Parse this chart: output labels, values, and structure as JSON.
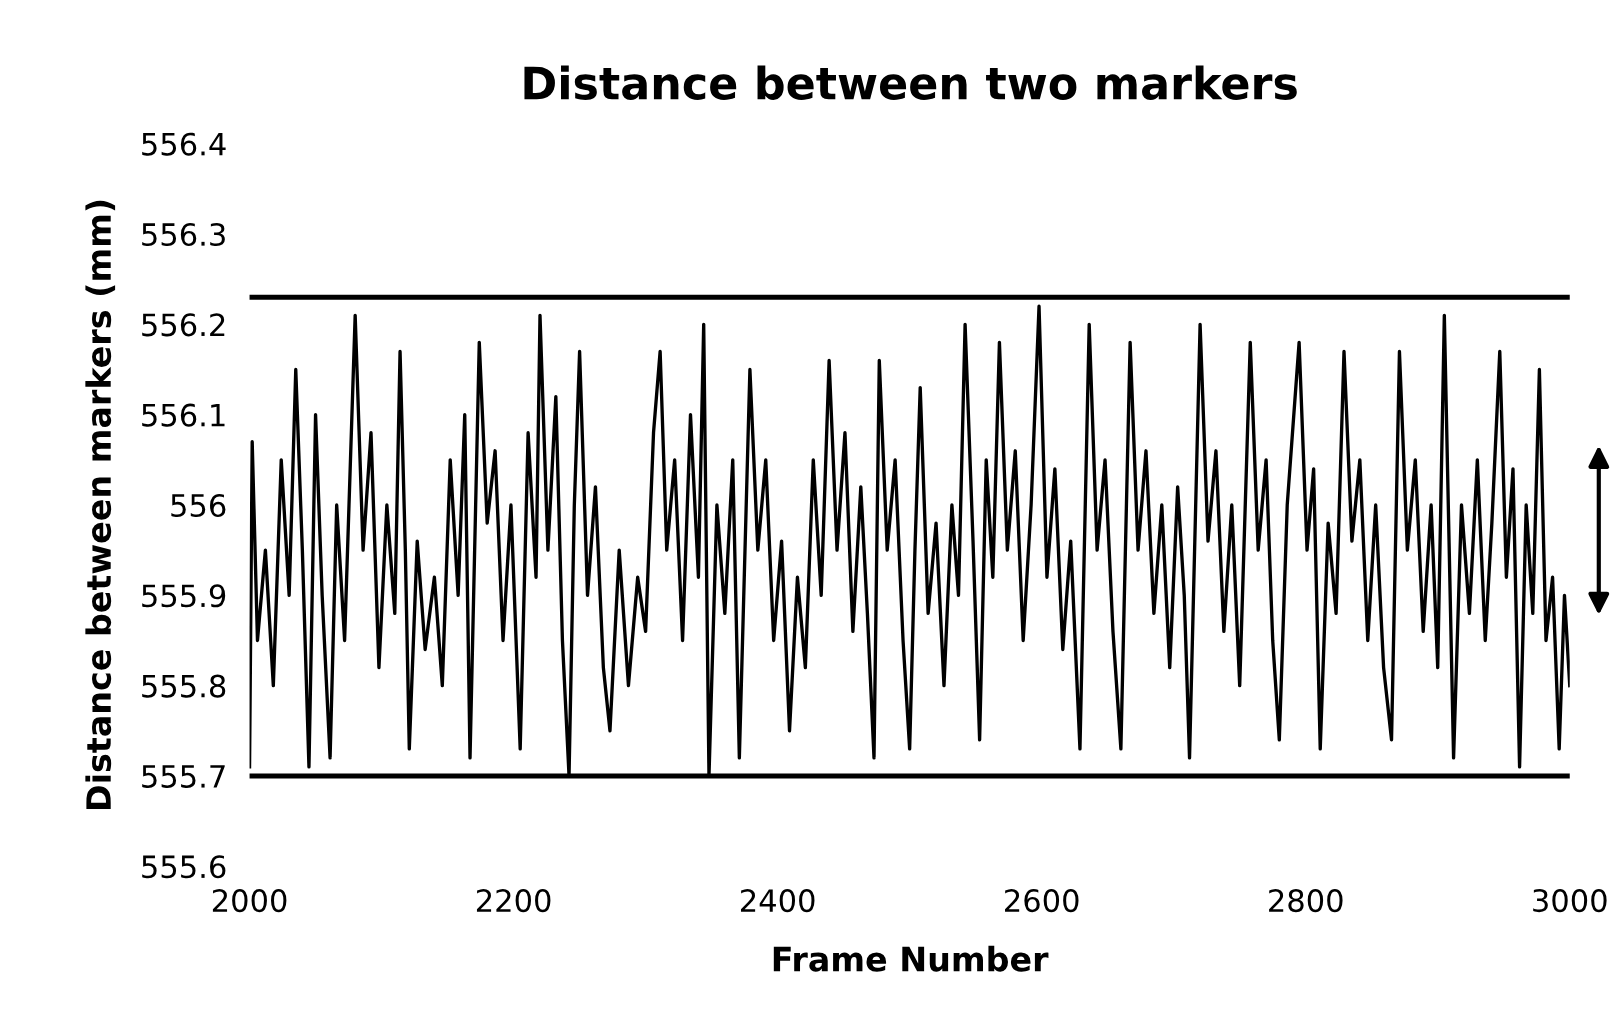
{
  "chart_data": {
    "type": "line",
    "title": "Distance between two markers",
    "xlabel": "Frame Number",
    "ylabel": "Distance between markers (mm)",
    "xlim": [
      2000,
      3000
    ],
    "ylim": [
      555.6,
      556.4
    ],
    "xticks": [
      2000,
      2200,
      2400,
      2600,
      2800,
      3000
    ],
    "yticks": [
      555.6,
      555.7,
      555.8,
      555.9,
      {
        "value": 556,
        "label": "556"
      },
      556.1,
      556.2,
      556.3,
      556.4
    ],
    "grid": false,
    "legend": false,
    "marker": "none",
    "line_style": "solid",
    "ref_lines": [
      {
        "axis": "y",
        "value": 556.23,
        "color": "#000000"
      },
      {
        "axis": "y",
        "value": 555.7,
        "color": "#000000"
      }
    ],
    "series": [
      {
        "color": "#000000",
        "x": [
          2000,
          2002,
          2006,
          2012,
          2018,
          2024,
          2030,
          2035,
          2040,
          2045,
          2050,
          2055,
          2061,
          2066,
          2072,
          2080,
          2086,
          2092,
          2098,
          2104,
          2110,
          2114,
          2118,
          2121,
          2127,
          2133,
          2140,
          2146,
          2152,
          2158,
          2163,
          2167,
          2174,
          2180,
          2186,
          2192,
          2198,
          2205,
          2211,
          2217,
          2220,
          2226,
          2232,
          2237,
          2242,
          2246,
          2250,
          2256,
          2262,
          2268,
          2273,
          2280,
          2287,
          2294,
          2300,
          2306,
          2311,
          2316,
          2322,
          2328,
          2334,
          2340,
          2344,
          2348,
          2354,
          2360,
          2366,
          2371,
          2379,
          2385,
          2391,
          2397,
          2403,
          2409,
          2415,
          2421,
          2427,
          2433,
          2439,
          2445,
          2451,
          2457,
          2463,
          2468,
          2473,
          2477,
          2483,
          2489,
          2495,
          2500,
          2504,
          2508,
          2514,
          2520,
          2526,
          2532,
          2537,
          2542,
          2548,
          2553,
          2558,
          2563,
          2568,
          2574,
          2580,
          2586,
          2592,
          2598,
          2604,
          2610,
          2616,
          2622,
          2629,
          2636,
          2642,
          2648,
          2654,
          2660,
          2667,
          2673,
          2679,
          2685,
          2691,
          2697,
          2703,
          2708,
          2712,
          2720,
          2726,
          2732,
          2738,
          2744,
          2750,
          2758,
          2764,
          2770,
          2775,
          2780,
          2786,
          2795,
          2801,
          2806,
          2811,
          2817,
          2823,
          2829,
          2835,
          2841,
          2847,
          2853,
          2859,
          2865,
          2871,
          2877,
          2883,
          2889,
          2895,
          2900,
          2905,
          2912,
          2918,
          2924,
          2930,
          2936,
          2941,
          2947,
          2952,
          2957,
          2962,
          2967,
          2972,
          2977,
          2982,
          2987,
          2992,
          2996,
          3000
        ],
        "values": [
          555.71,
          556.07,
          555.85,
          555.95,
          555.8,
          556.05,
          555.9,
          556.15,
          555.95,
          555.71,
          556.1,
          555.9,
          555.72,
          556.0,
          555.85,
          556.21,
          555.95,
          556.08,
          555.82,
          556.0,
          555.88,
          556.17,
          555.95,
          555.73,
          555.96,
          555.84,
          555.92,
          555.8,
          556.05,
          555.9,
          556.1,
          555.72,
          556.18,
          555.98,
          556.06,
          555.85,
          556.0,
          555.73,
          556.08,
          555.92,
          556.21,
          555.95,
          556.12,
          555.85,
          555.7,
          556.0,
          556.17,
          555.9,
          556.02,
          555.82,
          555.75,
          555.95,
          555.8,
          555.92,
          555.86,
          556.08,
          556.17,
          555.95,
          556.05,
          555.85,
          556.1,
          555.92,
          556.2,
          555.7,
          556.0,
          555.88,
          556.05,
          555.72,
          556.15,
          555.95,
          556.05,
          555.85,
          555.96,
          555.75,
          555.92,
          555.82,
          556.05,
          555.9,
          556.16,
          555.95,
          556.08,
          555.86,
          556.02,
          555.88,
          555.72,
          556.16,
          555.95,
          556.05,
          555.85,
          555.73,
          555.95,
          556.13,
          555.88,
          555.98,
          555.8,
          556.0,
          555.9,
          556.2,
          555.96,
          555.74,
          556.05,
          555.92,
          556.18,
          555.95,
          556.06,
          555.85,
          556.0,
          556.22,
          555.92,
          556.04,
          555.84,
          555.96,
          555.73,
          556.2,
          555.95,
          556.05,
          555.86,
          555.73,
          556.18,
          555.95,
          556.06,
          555.88,
          556.0,
          555.82,
          556.02,
          555.9,
          555.72,
          556.2,
          555.96,
          556.06,
          555.86,
          556.0,
          555.8,
          556.18,
          555.95,
          556.05,
          555.85,
          555.74,
          556.0,
          556.18,
          555.95,
          556.04,
          555.73,
          555.98,
          555.88,
          556.17,
          555.96,
          556.05,
          555.85,
          556.0,
          555.82,
          555.74,
          556.17,
          555.95,
          556.05,
          555.86,
          556.0,
          555.82,
          556.21,
          555.72,
          556.0,
          555.88,
          556.05,
          555.85,
          555.98,
          556.17,
          555.92,
          556.04,
          555.71,
          556.0,
          555.88,
          556.15,
          555.85,
          555.92,
          555.73,
          555.9,
          555.8
        ]
      }
    ]
  }
}
